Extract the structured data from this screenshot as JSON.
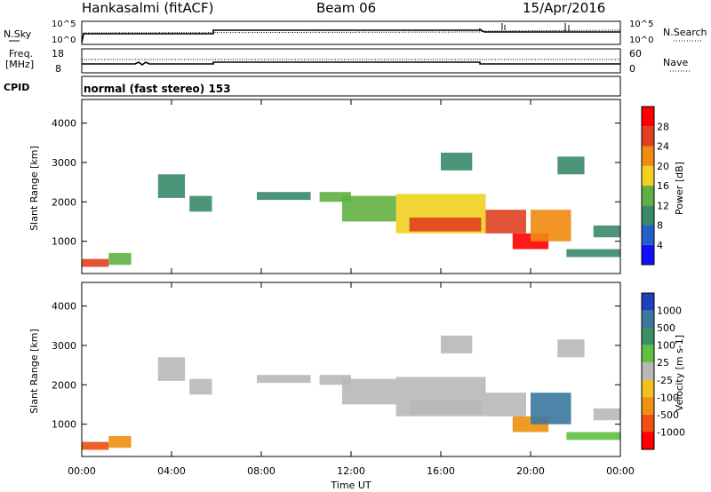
{
  "header": {
    "station": "Hankasalmi (fitACF)",
    "beam": "Beam 06",
    "date": "15/Apr/2016"
  },
  "noise_panel": {
    "left_label": "N.Sky",
    "left_ticks": [
      "10^5",
      "10^0"
    ],
    "right_label": "N.Search",
    "right_ticks": [
      "10^5",
      "10^0"
    ]
  },
  "freq_panel": {
    "left_label_1": "Freq.",
    "left_label_2": "[MHz]",
    "left_ticks": [
      "18",
      "8"
    ],
    "right_label": "Nave",
    "right_ticks": [
      "60",
      "0"
    ]
  },
  "cpid": {
    "label": "CPID",
    "text": "normal (fast stereo) 153"
  },
  "x_axis": {
    "ticks": [
      "00:00",
      "04:00",
      "08:00",
      "12:00",
      "16:00",
      "20:00",
      "00:00"
    ],
    "label": "Time UT"
  },
  "y_axis": {
    "label": "Slant Range [km]",
    "ticks": [
      "1000",
      "2000",
      "3000",
      "4000"
    ]
  },
  "power_scale": {
    "title": "Power [dB]",
    "ticks": [
      "4",
      "8",
      "12",
      "16",
      "20",
      "24",
      "28"
    ],
    "colors": [
      "#1010ff",
      "#2060c8",
      "#3a8a6a",
      "#60b040",
      "#f0d020",
      "#f08a10",
      "#e04020",
      "#ff0000"
    ]
  },
  "velocity_scale": {
    "title": "Velocity [m s-1]",
    "ticks": [
      "1000",
      "500",
      "100",
      "25",
      "-25",
      "-100",
      "-500",
      "-1000"
    ],
    "colors": [
      "#2040c0",
      "#3a78a0",
      "#3a9060",
      "#60c040",
      "#b8b8b8",
      "#f0c020",
      "#f09010",
      "#f05010",
      "#ff0000"
    ]
  },
  "chart_data": [
    {
      "type": "heatmap",
      "title": "Power",
      "xlabel": "Time UT",
      "ylabel": "Slant Range [km]",
      "xlim": [
        0,
        24
      ],
      "ylim": [
        180,
        4600
      ],
      "zlabel": "Power [dB]",
      "zlim": [
        0,
        32
      ],
      "regions": [
        {
          "t0": 0.0,
          "t1": 1.2,
          "r0": 350,
          "r1": 550,
          "p": 26
        },
        {
          "t0": 1.2,
          "t1": 2.2,
          "r0": 400,
          "r1": 700,
          "p": 14
        },
        {
          "t0": 3.4,
          "t1": 4.6,
          "r0": 2100,
          "r1": 2700,
          "p": 8
        },
        {
          "t0": 4.8,
          "t1": 5.8,
          "r0": 1750,
          "r1": 2150,
          "p": 10
        },
        {
          "t0": 7.8,
          "t1": 10.2,
          "r0": 2050,
          "r1": 2250,
          "p": 11
        },
        {
          "t0": 10.6,
          "t1": 12.0,
          "r0": 2000,
          "r1": 2250,
          "p": 12
        },
        {
          "t0": 11.6,
          "t1": 14.0,
          "r0": 1500,
          "r1": 2150,
          "p": 14
        },
        {
          "t0": 14.0,
          "t1": 18.0,
          "r0": 1200,
          "r1": 2200,
          "p": 19
        },
        {
          "t0": 14.6,
          "t1": 17.8,
          "r0": 1250,
          "r1": 1600,
          "p": 27
        },
        {
          "t0": 18.0,
          "t1": 19.8,
          "r0": 1200,
          "r1": 1800,
          "p": 25
        },
        {
          "t0": 19.2,
          "t1": 20.8,
          "r0": 800,
          "r1": 1200,
          "p": 29
        },
        {
          "t0": 20.0,
          "t1": 21.8,
          "r0": 1000,
          "r1": 1800,
          "p": 20
        },
        {
          "t0": 16.0,
          "t1": 17.4,
          "r0": 2800,
          "r1": 3250,
          "p": 8
        },
        {
          "t0": 21.2,
          "t1": 22.4,
          "r0": 2700,
          "r1": 3150,
          "p": 8
        },
        {
          "t0": 22.8,
          "t1": 24.0,
          "r0": 1100,
          "r1": 1400,
          "p": 8
        },
        {
          "t0": 21.6,
          "t1": 24.0,
          "r0": 600,
          "r1": 800,
          "p": 8
        }
      ]
    },
    {
      "type": "heatmap",
      "title": "Velocity",
      "xlabel": "Time UT",
      "ylabel": "Slant Range [km]",
      "xlim": [
        0,
        24
      ],
      "ylim": [
        180,
        4600
      ],
      "zlabel": "Velocity [m s-1]",
      "zlim": [
        -1000,
        1000
      ],
      "regions": [
        {
          "t0": 0.0,
          "t1": 1.2,
          "r0": 350,
          "r1": 550,
          "v": -600
        },
        {
          "t0": 1.2,
          "t1": 2.2,
          "r0": 400,
          "r1": 700,
          "v": -150
        },
        {
          "t0": 3.4,
          "t1": 4.6,
          "r0": 2100,
          "r1": 2700,
          "v": 0
        },
        {
          "t0": 4.8,
          "t1": 5.8,
          "r0": 1750,
          "r1": 2150,
          "v": 0
        },
        {
          "t0": 7.8,
          "t1": 10.2,
          "r0": 2050,
          "r1": 2250,
          "v": 0
        },
        {
          "t0": 10.6,
          "t1": 12.0,
          "r0": 2000,
          "r1": 2250,
          "v": 0
        },
        {
          "t0": 11.6,
          "t1": 14.0,
          "r0": 1500,
          "r1": 2150,
          "v": 0
        },
        {
          "t0": 14.0,
          "t1": 18.0,
          "r0": 1200,
          "r1": 2200,
          "v": 0
        },
        {
          "t0": 14.6,
          "t1": 17.8,
          "r0": 1250,
          "r1": 1600,
          "v": 0
        },
        {
          "t0": 18.0,
          "t1": 19.8,
          "r0": 1200,
          "r1": 1800,
          "v": 0
        },
        {
          "t0": 19.2,
          "t1": 20.8,
          "r0": 800,
          "r1": 1200,
          "v": -500
        },
        {
          "t0": 20.0,
          "t1": 21.8,
          "r0": 1000,
          "r1": 1800,
          "v": 700
        },
        {
          "t0": 16.0,
          "t1": 17.4,
          "r0": 2800,
          "r1": 3250,
          "v": 0
        },
        {
          "t0": 21.2,
          "t1": 22.4,
          "r0": 2700,
          "r1": 3150,
          "v": 0
        },
        {
          "t0": 22.8,
          "t1": 24.0,
          "r0": 1100,
          "r1": 1400,
          "v": 0
        },
        {
          "t0": 21.6,
          "t1": 24.0,
          "r0": 600,
          "r1": 800,
          "v": 60
        }
      ]
    }
  ]
}
